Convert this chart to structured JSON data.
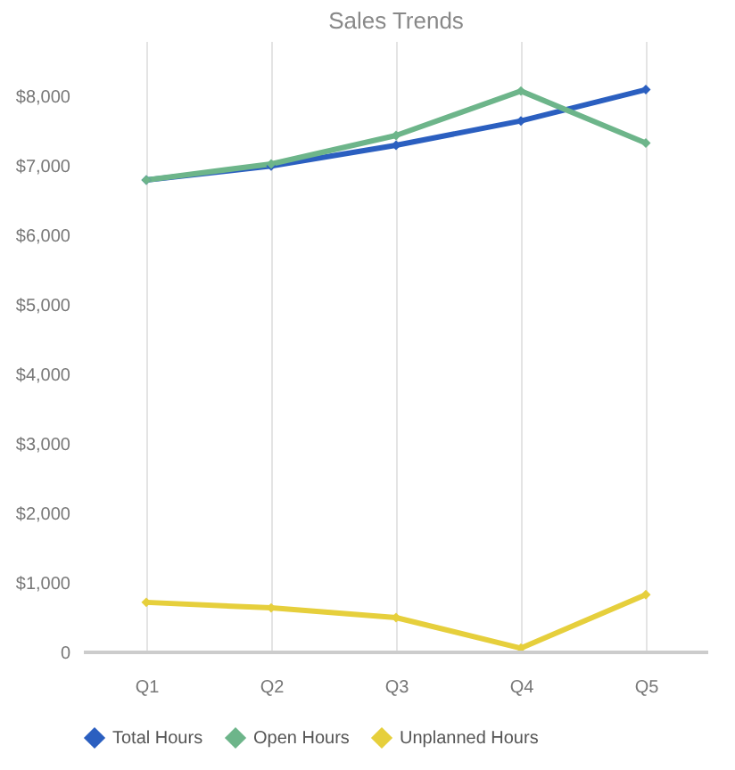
{
  "chart_data": {
    "type": "line",
    "title": "Sales Trends",
    "categories": [
      "Q1",
      "Q2",
      "Q3",
      "Q4",
      "Q5"
    ],
    "series": [
      {
        "name": "Total Hours",
        "color": "#2b5fc0",
        "values": [
          6800,
          7000,
          7300,
          7650,
          8100
        ]
      },
      {
        "name": "Open Hours",
        "color": "#6db58a",
        "values": [
          6800,
          7030,
          7440,
          8080,
          7330
        ]
      },
      {
        "name": "Unplanned Hours",
        "color": "#e6cf3c",
        "values": [
          720,
          640,
          500,
          60,
          830
        ]
      }
    ],
    "ylim": [
      0,
      8800
    ],
    "yticks": [
      0,
      {
        "value": 1000,
        "label": "$1,000"
      },
      {
        "value": 2000,
        "label": "$2,000"
      },
      {
        "value": 3000,
        "label": "$3,000"
      },
      {
        "value": 4000,
        "label": "$4,000"
      },
      {
        "value": 5000,
        "label": "$5,000"
      },
      {
        "value": 6000,
        "label": "$6,000"
      },
      {
        "value": 7000,
        "label": "$7,000"
      },
      {
        "value": 8000,
        "label": "$8,000"
      }
    ],
    "grid": "x",
    "legend": "bottom",
    "marker": "diamond",
    "line_style": "solid"
  }
}
